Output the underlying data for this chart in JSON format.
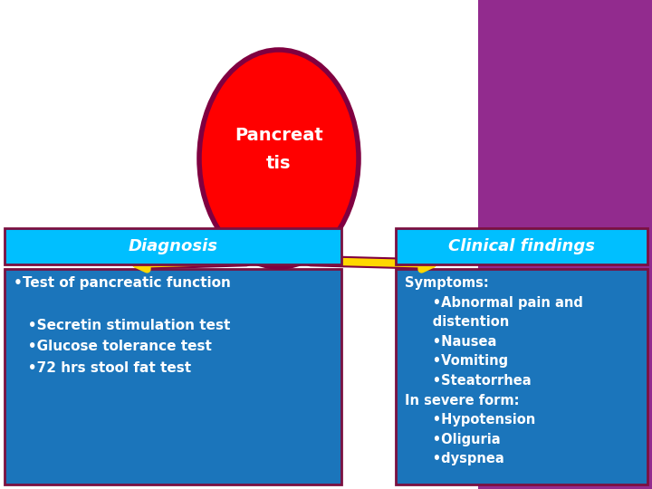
{
  "circle_text": "Pancreat\ntis",
  "circle_color": "#FF0000",
  "circle_edge_color": "#800040",
  "background_left": "#FFFFFF",
  "background_right": "#922B8E",
  "header_color": "#00BFFF",
  "header_text_color": "#FFFFFF",
  "box_color": "#1B75BB",
  "box_edge_color": "#7B1040",
  "arrow_color": "#FFD700",
  "arrow_edge_color": "#800040",
  "text_color": "#FFFFFF",
  "diagnosis_header": "Diagnosis",
  "clinical_header": "Clinical findings",
  "diagnosis_text": "•Test of pancreatic function\n\n   •Secretin stimulation test\n   •Glucose tolerance test\n   •72 hrs stool fat test",
  "clinical_text": "Symptoms:\n      •Abnormal pain and\n      distention\n      •Nausea\n      •Vomiting\n      •Steatorrhea\nIn severe form:\n      •Hypotension\n      •Oliguria\n      •dyspnea"
}
